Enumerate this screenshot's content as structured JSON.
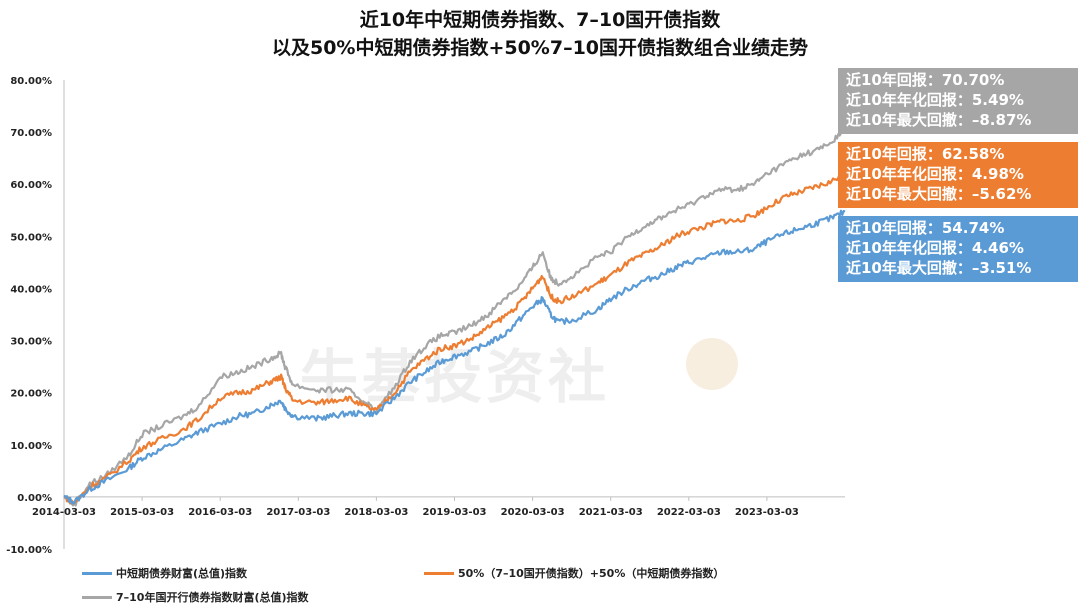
{
  "title_line1": "近10年中短期债券指数、7–10国开债指数",
  "title_line2": "以及50%中短期债券指数+50%7–10国开债指数组合业绩走势",
  "watermark": "牛基投资社",
  "boxes": [
    {
      "color": "#A6A6A6",
      "lines": [
        "近10年回报：70.70%",
        "近10年年化回报：5.49%",
        "近10年最大回撤：–8.87%"
      ]
    },
    {
      "color": "#ED7D31",
      "lines": [
        "近10年回报：62.58%",
        "近10年年化回报：4.98%",
        "近10年最大回撤：–5.62%"
      ]
    },
    {
      "color": "#5B9BD5",
      "lines": [
        "近10年回报：54.74%",
        "近10年年化回报：4.46%",
        "近10年最大回撤：–3.51%"
      ]
    }
  ],
  "chart_data": {
    "type": "line",
    "title": "近10年中短期债券指数、7–10国开债指数 以及50%中短期债券指数+50%7–10国开债指数组合业绩走势",
    "ylim": [
      -10,
      80
    ],
    "y_ticks": [
      "-10.00%",
      "0.00%",
      "10.00%",
      "20.00%",
      "30.00%",
      "40.00%",
      "50.00%",
      "60.00%",
      "70.00%",
      "80.00%"
    ],
    "x_tick_labels": [
      "2014-03-03",
      "2015-03-03",
      "2016-03-03",
      "2017-03-03",
      "2018-03-03",
      "2019-03-03",
      "2020-03-03",
      "2021-03-03",
      "2022-03-03",
      "2023-03-03"
    ],
    "x_range": [
      2014.17,
      2024.17
    ],
    "grid": false,
    "legend_position": "bottom",
    "series": [
      {
        "name": "中短期债券财富(总值)指数",
        "color": "#5B9BD5",
        "points": [
          [
            2014.17,
            0
          ],
          [
            2014.3,
            -1
          ],
          [
            2014.5,
            1.5
          ],
          [
            2014.7,
            3
          ],
          [
            2015.0,
            5.5
          ],
          [
            2015.17,
            7.5
          ],
          [
            2015.4,
            9
          ],
          [
            2015.7,
            11
          ],
          [
            2015.9,
            12.5
          ],
          [
            2016.17,
            14
          ],
          [
            2016.4,
            15.5
          ],
          [
            2016.6,
            16
          ],
          [
            2016.8,
            17.5
          ],
          [
            2016.95,
            18.5
          ],
          [
            2017.0,
            17
          ],
          [
            2017.1,
            15.5
          ],
          [
            2017.4,
            15
          ],
          [
            2017.6,
            15.5
          ],
          [
            2017.8,
            16
          ],
          [
            2018.0,
            16
          ],
          [
            2018.17,
            16
          ],
          [
            2018.4,
            19
          ],
          [
            2018.6,
            22
          ],
          [
            2018.8,
            24
          ],
          [
            2019.0,
            26
          ],
          [
            2019.17,
            27
          ],
          [
            2019.4,
            28
          ],
          [
            2019.6,
            29.5
          ],
          [
            2019.8,
            31
          ],
          [
            2020.0,
            34
          ],
          [
            2020.17,
            36.5
          ],
          [
            2020.3,
            38
          ],
          [
            2020.4,
            35
          ],
          [
            2020.5,
            33.5
          ],
          [
            2020.7,
            34
          ],
          [
            2021.0,
            36
          ],
          [
            2021.17,
            38
          ],
          [
            2021.4,
            40
          ],
          [
            2021.6,
            41.5
          ],
          [
            2021.8,
            42.5
          ],
          [
            2022.0,
            44
          ],
          [
            2022.17,
            45
          ],
          [
            2022.4,
            46
          ],
          [
            2022.6,
            47
          ],
          [
            2022.8,
            47
          ],
          [
            2023.0,
            47.5
          ],
          [
            2023.17,
            49
          ],
          [
            2023.4,
            50.5
          ],
          [
            2023.6,
            51.5
          ],
          [
            2023.8,
            52.5
          ],
          [
            2024.0,
            53.5
          ],
          [
            2024.17,
            54.74
          ]
        ]
      },
      {
        "name": "50%（7–10国开债指数）+50%（中短期债券指数）",
        "color": "#ED7D31",
        "points": [
          [
            2014.17,
            0
          ],
          [
            2014.3,
            -1.2
          ],
          [
            2014.5,
            2
          ],
          [
            2014.7,
            3.5
          ],
          [
            2015.0,
            7
          ],
          [
            2015.17,
            9.5
          ],
          [
            2015.4,
            11
          ],
          [
            2015.7,
            13
          ],
          [
            2015.9,
            15
          ],
          [
            2016.17,
            19
          ],
          [
            2016.4,
            20
          ],
          [
            2016.6,
            20.5
          ],
          [
            2016.8,
            22
          ],
          [
            2016.95,
            23
          ],
          [
            2017.0,
            21
          ],
          [
            2017.1,
            18.5
          ],
          [
            2017.4,
            18
          ],
          [
            2017.6,
            18.5
          ],
          [
            2017.8,
            19
          ],
          [
            2018.0,
            17.5
          ],
          [
            2018.17,
            16.5
          ],
          [
            2018.4,
            20
          ],
          [
            2018.6,
            24
          ],
          [
            2018.8,
            26.5
          ],
          [
            2019.0,
            28.5
          ],
          [
            2019.17,
            29
          ],
          [
            2019.4,
            30.5
          ],
          [
            2019.6,
            32.5
          ],
          [
            2019.8,
            34.5
          ],
          [
            2020.0,
            37
          ],
          [
            2020.17,
            40
          ],
          [
            2020.3,
            42.5
          ],
          [
            2020.4,
            38.5
          ],
          [
            2020.5,
            37.5
          ],
          [
            2020.7,
            38.5
          ],
          [
            2021.0,
            41
          ],
          [
            2021.17,
            42.5
          ],
          [
            2021.4,
            45
          ],
          [
            2021.6,
            46.5
          ],
          [
            2021.8,
            48
          ],
          [
            2022.0,
            50
          ],
          [
            2022.17,
            51
          ],
          [
            2022.4,
            52
          ],
          [
            2022.6,
            53
          ],
          [
            2022.8,
            53
          ],
          [
            2023.0,
            54
          ],
          [
            2023.17,
            55.5
          ],
          [
            2023.4,
            57.5
          ],
          [
            2023.6,
            58.5
          ],
          [
            2023.8,
            59.5
          ],
          [
            2024.0,
            60.5
          ],
          [
            2024.17,
            62.58
          ]
        ]
      },
      {
        "name": "7–10年国开行债券指数财富(总值)指数",
        "color": "#A6A6A6",
        "points": [
          [
            2014.17,
            0
          ],
          [
            2014.3,
            -1.5
          ],
          [
            2014.5,
            2.5
          ],
          [
            2014.7,
            4
          ],
          [
            2015.0,
            8
          ],
          [
            2015.17,
            12
          ],
          [
            2015.4,
            13.5
          ],
          [
            2015.7,
            15.5
          ],
          [
            2015.9,
            17.5
          ],
          [
            2016.17,
            23
          ],
          [
            2016.4,
            24
          ],
          [
            2016.6,
            25
          ],
          [
            2016.8,
            26.5
          ],
          [
            2016.95,
            27.5
          ],
          [
            2017.0,
            25
          ],
          [
            2017.1,
            21.5
          ],
          [
            2017.4,
            20.5
          ],
          [
            2017.6,
            20.5
          ],
          [
            2017.8,
            20.5
          ],
          [
            2018.0,
            18.5
          ],
          [
            2018.17,
            16.5
          ],
          [
            2018.4,
            21
          ],
          [
            2018.6,
            26
          ],
          [
            2018.8,
            29
          ],
          [
            2019.0,
            31
          ],
          [
            2019.17,
            31.5
          ],
          [
            2019.4,
            33
          ],
          [
            2019.6,
            35
          ],
          [
            2019.8,
            38
          ],
          [
            2020.0,
            40.5
          ],
          [
            2020.17,
            44
          ],
          [
            2020.3,
            47
          ],
          [
            2020.4,
            42
          ],
          [
            2020.5,
            41
          ],
          [
            2020.7,
            42.5
          ],
          [
            2021.0,
            46
          ],
          [
            2021.17,
            47
          ],
          [
            2021.4,
            50
          ],
          [
            2021.6,
            52
          ],
          [
            2021.8,
            53.5
          ],
          [
            2022.0,
            55
          ],
          [
            2022.17,
            56
          ],
          [
            2022.4,
            58
          ],
          [
            2022.6,
            59
          ],
          [
            2022.8,
            59
          ],
          [
            2023.0,
            60
          ],
          [
            2023.17,
            62
          ],
          [
            2023.4,
            64
          ],
          [
            2023.6,
            65.5
          ],
          [
            2023.8,
            66.5
          ],
          [
            2024.0,
            68
          ],
          [
            2024.17,
            70.7
          ]
        ]
      }
    ]
  }
}
